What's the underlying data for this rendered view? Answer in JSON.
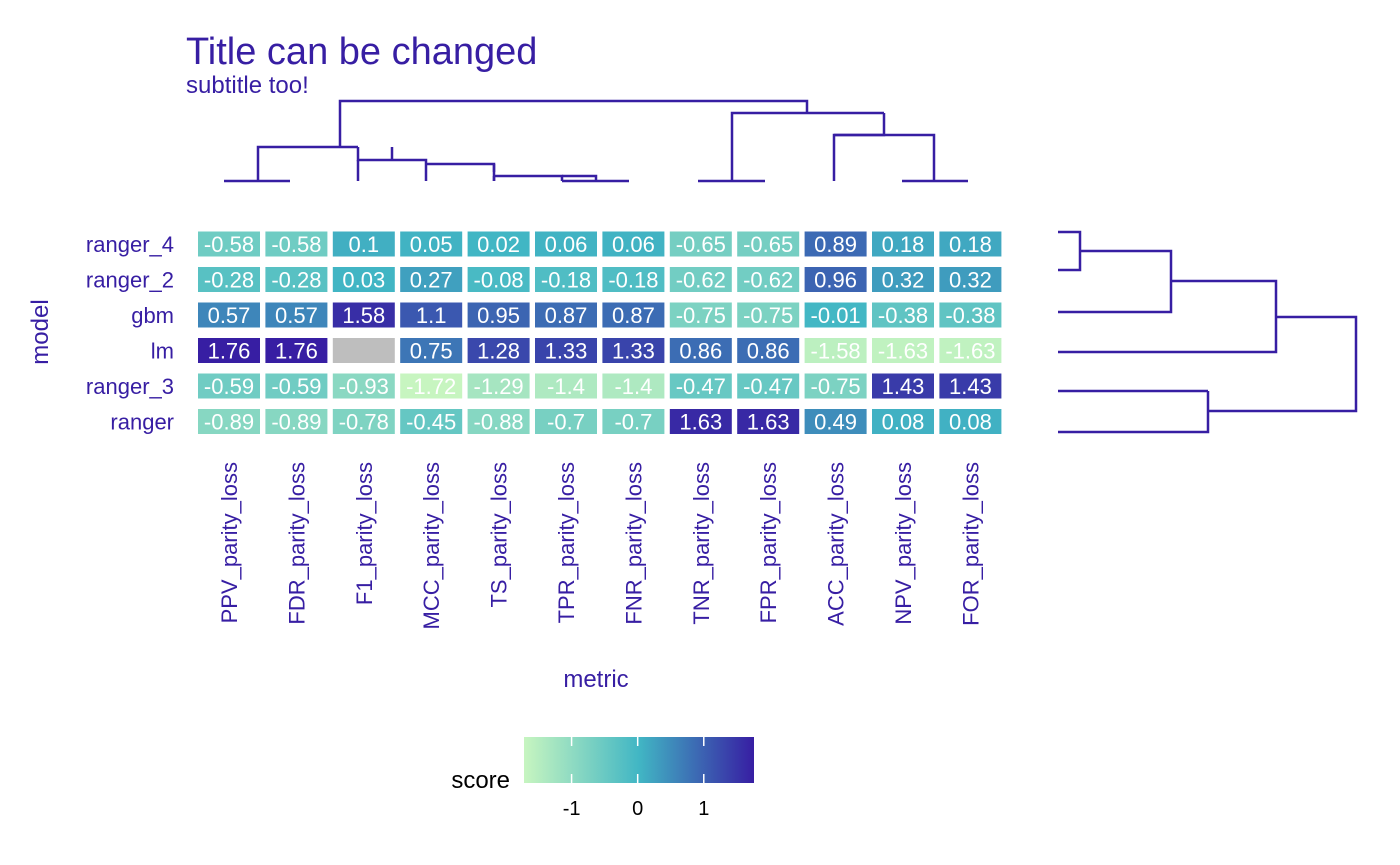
{
  "chart_data": {
    "type": "heatmap",
    "title": "Title can be changed",
    "subtitle": "subtitle too!",
    "xlabel": "metric",
    "ylabel": "model",
    "x_categories": [
      "PPV_parity_loss",
      "FDR_parity_loss",
      "F1_parity_loss",
      "MCC_parity_loss",
      "TS_parity_loss",
      "TPR_parity_loss",
      "FNR_parity_loss",
      "TNR_parity_loss",
      "FPR_parity_loss",
      "ACC_parity_loss",
      "NPV_parity_loss",
      "FOR_parity_loss"
    ],
    "y_categories": [
      "ranger_4",
      "ranger_2",
      "gbm",
      "lm",
      "ranger_3",
      "ranger"
    ],
    "values": [
      [
        -0.58,
        -0.58,
        0.1,
        0.05,
        0.02,
        0.06,
        0.06,
        -0.65,
        -0.65,
        0.89,
        0.18,
        0.18
      ],
      [
        -0.28,
        -0.28,
        0.03,
        0.27,
        -0.08,
        -0.18,
        -0.18,
        -0.62,
        -0.62,
        0.96,
        0.32,
        0.32
      ],
      [
        0.57,
        0.57,
        1.58,
        1.1,
        0.95,
        0.87,
        0.87,
        -0.75,
        -0.75,
        -0.01,
        -0.38,
        -0.38
      ],
      [
        1.76,
        1.76,
        null,
        0.75,
        1.28,
        1.33,
        1.33,
        0.86,
        0.86,
        -1.58,
        -1.63,
        -1.63
      ],
      [
        -0.59,
        -0.59,
        -0.93,
        -1.72,
        -1.29,
        -1.4,
        -1.4,
        -0.47,
        -0.47,
        -0.75,
        1.43,
        1.43
      ],
      [
        -0.89,
        -0.89,
        -0.78,
        -0.45,
        -0.88,
        -0.7,
        -0.7,
        1.63,
        1.63,
        0.49,
        0.08,
        0.08
      ]
    ],
    "na_color": "#bebebe",
    "legend": {
      "title": "score",
      "ticks": [
        -1,
        0,
        1
      ],
      "range": [
        -1.72,
        1.76
      ],
      "colors": [
        "#c7f5c0",
        "#41b6c4",
        "#371ea3"
      ]
    },
    "text_color": "#371ea3",
    "dendrogram_color": "#371ea3"
  }
}
